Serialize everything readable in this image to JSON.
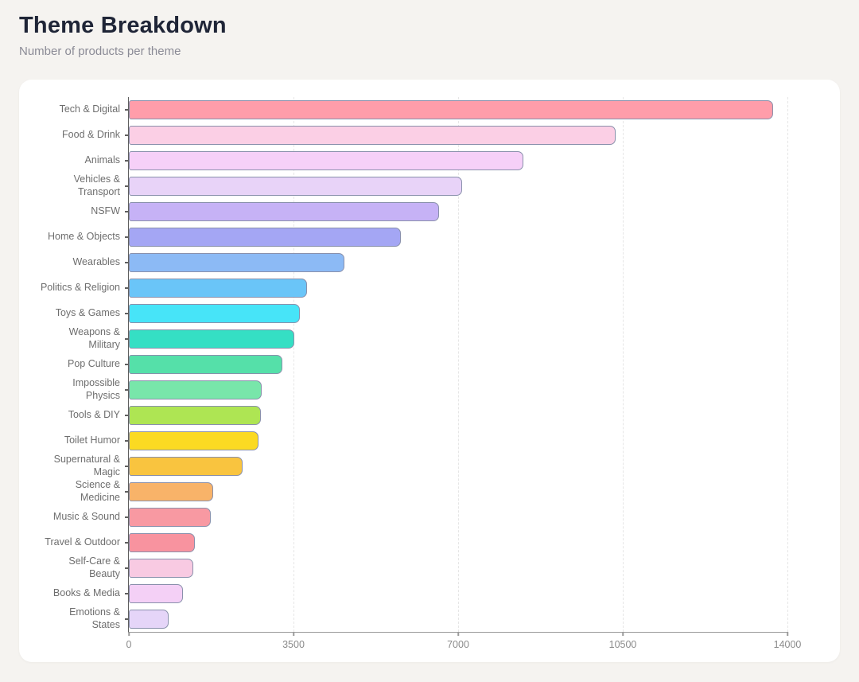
{
  "header": {
    "title": "Theme Breakdown",
    "subtitle": "Number of products per theme"
  },
  "chart_data": {
    "type": "bar",
    "orientation": "horizontal",
    "title": "Theme Breakdown",
    "subtitle": "Number of products per theme",
    "categories": [
      "Tech & Digital",
      "Food & Drink",
      "Animals",
      "Vehicles &\nTransport",
      "NSFW",
      "Home & Objects",
      "Wearables",
      "Politics & Religion",
      "Toys & Games",
      "Weapons &\nMilitary",
      "Pop Culture",
      "Impossible\nPhysics",
      "Tools & DIY",
      "Toilet Humor",
      "Supernatural &\nMagic",
      "Science &\nMedicine",
      "Music & Sound",
      "Travel & Outdoor",
      "Self-Care &\nBeauty",
      "Books & Media",
      "Emotions &\nStates"
    ],
    "values": [
      13700,
      10350,
      8380,
      7080,
      6590,
      5780,
      4580,
      3780,
      3630,
      3510,
      3260,
      2820,
      2800,
      2750,
      2420,
      1790,
      1740,
      1400,
      1370,
      1150,
      840
    ],
    "bar_colors": [
      "#ff9daa",
      "#fbcfe5",
      "#f6d0f8",
      "#e8d3f8",
      "#c6b2f6",
      "#a4a6f4",
      "#8cbaf5",
      "#6ac5f8",
      "#47e4f8",
      "#35dfc4",
      "#55e0a9",
      "#78e6aa",
      "#aee553",
      "#fbda22",
      "#f9c43f",
      "#f8b369",
      "#f899a2",
      "#f8939f",
      "#f8cae2",
      "#f4d0f6",
      "#e5d5f8"
    ],
    "bar_border_color": "#8a91ac",
    "xlabel": "",
    "ylabel": "",
    "xlim": [
      0,
      14000
    ],
    "x_ticks": [
      0,
      3500,
      7000,
      10500,
      14000
    ],
    "grid": "vertical-dashed",
    "legend": "none"
  }
}
